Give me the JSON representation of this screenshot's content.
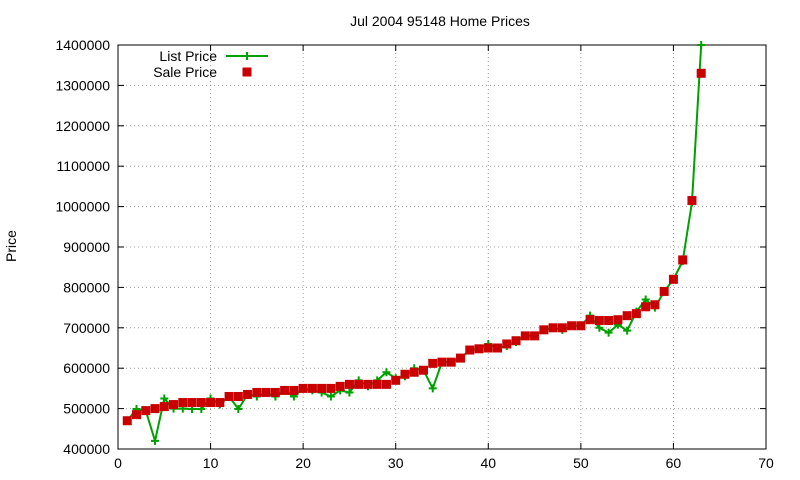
{
  "chart_data": {
    "type": "line",
    "title": "Jul 2004 95148 Home Prices",
    "xlabel": "",
    "ylabel": "Price",
    "xlim": [
      0,
      70
    ],
    "ylim": [
      400000,
      1400000
    ],
    "xticks": [
      0,
      10,
      20,
      30,
      40,
      50,
      60,
      70
    ],
    "yticks": [
      400000,
      500000,
      600000,
      700000,
      800000,
      900000,
      1000000,
      1100000,
      1200000,
      1300000,
      1400000
    ],
    "grid": true,
    "legend_position": "top-left",
    "series": [
      {
        "name": "List Price",
        "style": "lines+points",
        "color": "#00a000",
        "marker": "plus",
        "x": [
          1,
          2,
          3,
          4,
          5,
          6,
          7,
          8,
          9,
          10,
          11,
          12,
          13,
          14,
          15,
          16,
          17,
          18,
          19,
          20,
          21,
          22,
          23,
          24,
          25,
          26,
          27,
          28,
          29,
          30,
          31,
          32,
          33,
          34,
          35,
          36,
          37,
          38,
          39,
          40,
          41,
          42,
          43,
          44,
          45,
          46,
          47,
          48,
          49,
          50,
          51,
          52,
          53,
          54,
          55,
          56,
          57,
          58,
          59,
          60,
          61,
          62,
          63
        ],
        "y": [
          470000,
          499000,
          495000,
          420000,
          525000,
          500000,
          500000,
          499000,
          499000,
          525000,
          510000,
          530000,
          499000,
          535000,
          530000,
          540000,
          530000,
          545000,
          530000,
          550000,
          545000,
          540000,
          530000,
          545000,
          540000,
          570000,
          555000,
          570000,
          590000,
          575000,
          580000,
          600000,
          595000,
          550000,
          615000,
          615000,
          625000,
          645000,
          648000,
          660000,
          650000,
          655000,
          665000,
          680000,
          680000,
          695000,
          700000,
          695000,
          705000,
          705000,
          730000,
          700000,
          688000,
          708000,
          693000,
          740000,
          770000,
          750000,
          790000,
          820000,
          865000,
          1010000,
          1400000
        ]
      },
      {
        "name": "Sale Price",
        "style": "points",
        "color": "#c80000",
        "marker": "square",
        "x": [
          1,
          2,
          3,
          4,
          5,
          6,
          7,
          8,
          9,
          10,
          11,
          12,
          13,
          14,
          15,
          16,
          17,
          18,
          19,
          20,
          21,
          22,
          23,
          24,
          25,
          26,
          27,
          28,
          29,
          30,
          31,
          32,
          33,
          34,
          35,
          36,
          37,
          38,
          39,
          40,
          41,
          42,
          43,
          44,
          45,
          46,
          47,
          48,
          49,
          50,
          51,
          52,
          53,
          54,
          55,
          56,
          57,
          58,
          59,
          60,
          61,
          62,
          63
        ],
        "y": [
          470000,
          485000,
          495000,
          500000,
          505000,
          510000,
          515000,
          515000,
          515000,
          515000,
          515000,
          530000,
          530000,
          535000,
          540000,
          540000,
          540000,
          545000,
          545000,
          550000,
          550000,
          550000,
          550000,
          555000,
          560000,
          560000,
          560000,
          560000,
          560000,
          570000,
          585000,
          590000,
          595000,
          612000,
          615000,
          615000,
          625000,
          645000,
          648000,
          650000,
          650000,
          660000,
          668000,
          680000,
          680000,
          695000,
          700000,
          700000,
          705000,
          705000,
          720000,
          718000,
          718000,
          720000,
          730000,
          735000,
          752000,
          757000,
          790000,
          820000,
          868000,
          1015000,
          1330000
        ]
      }
    ]
  }
}
